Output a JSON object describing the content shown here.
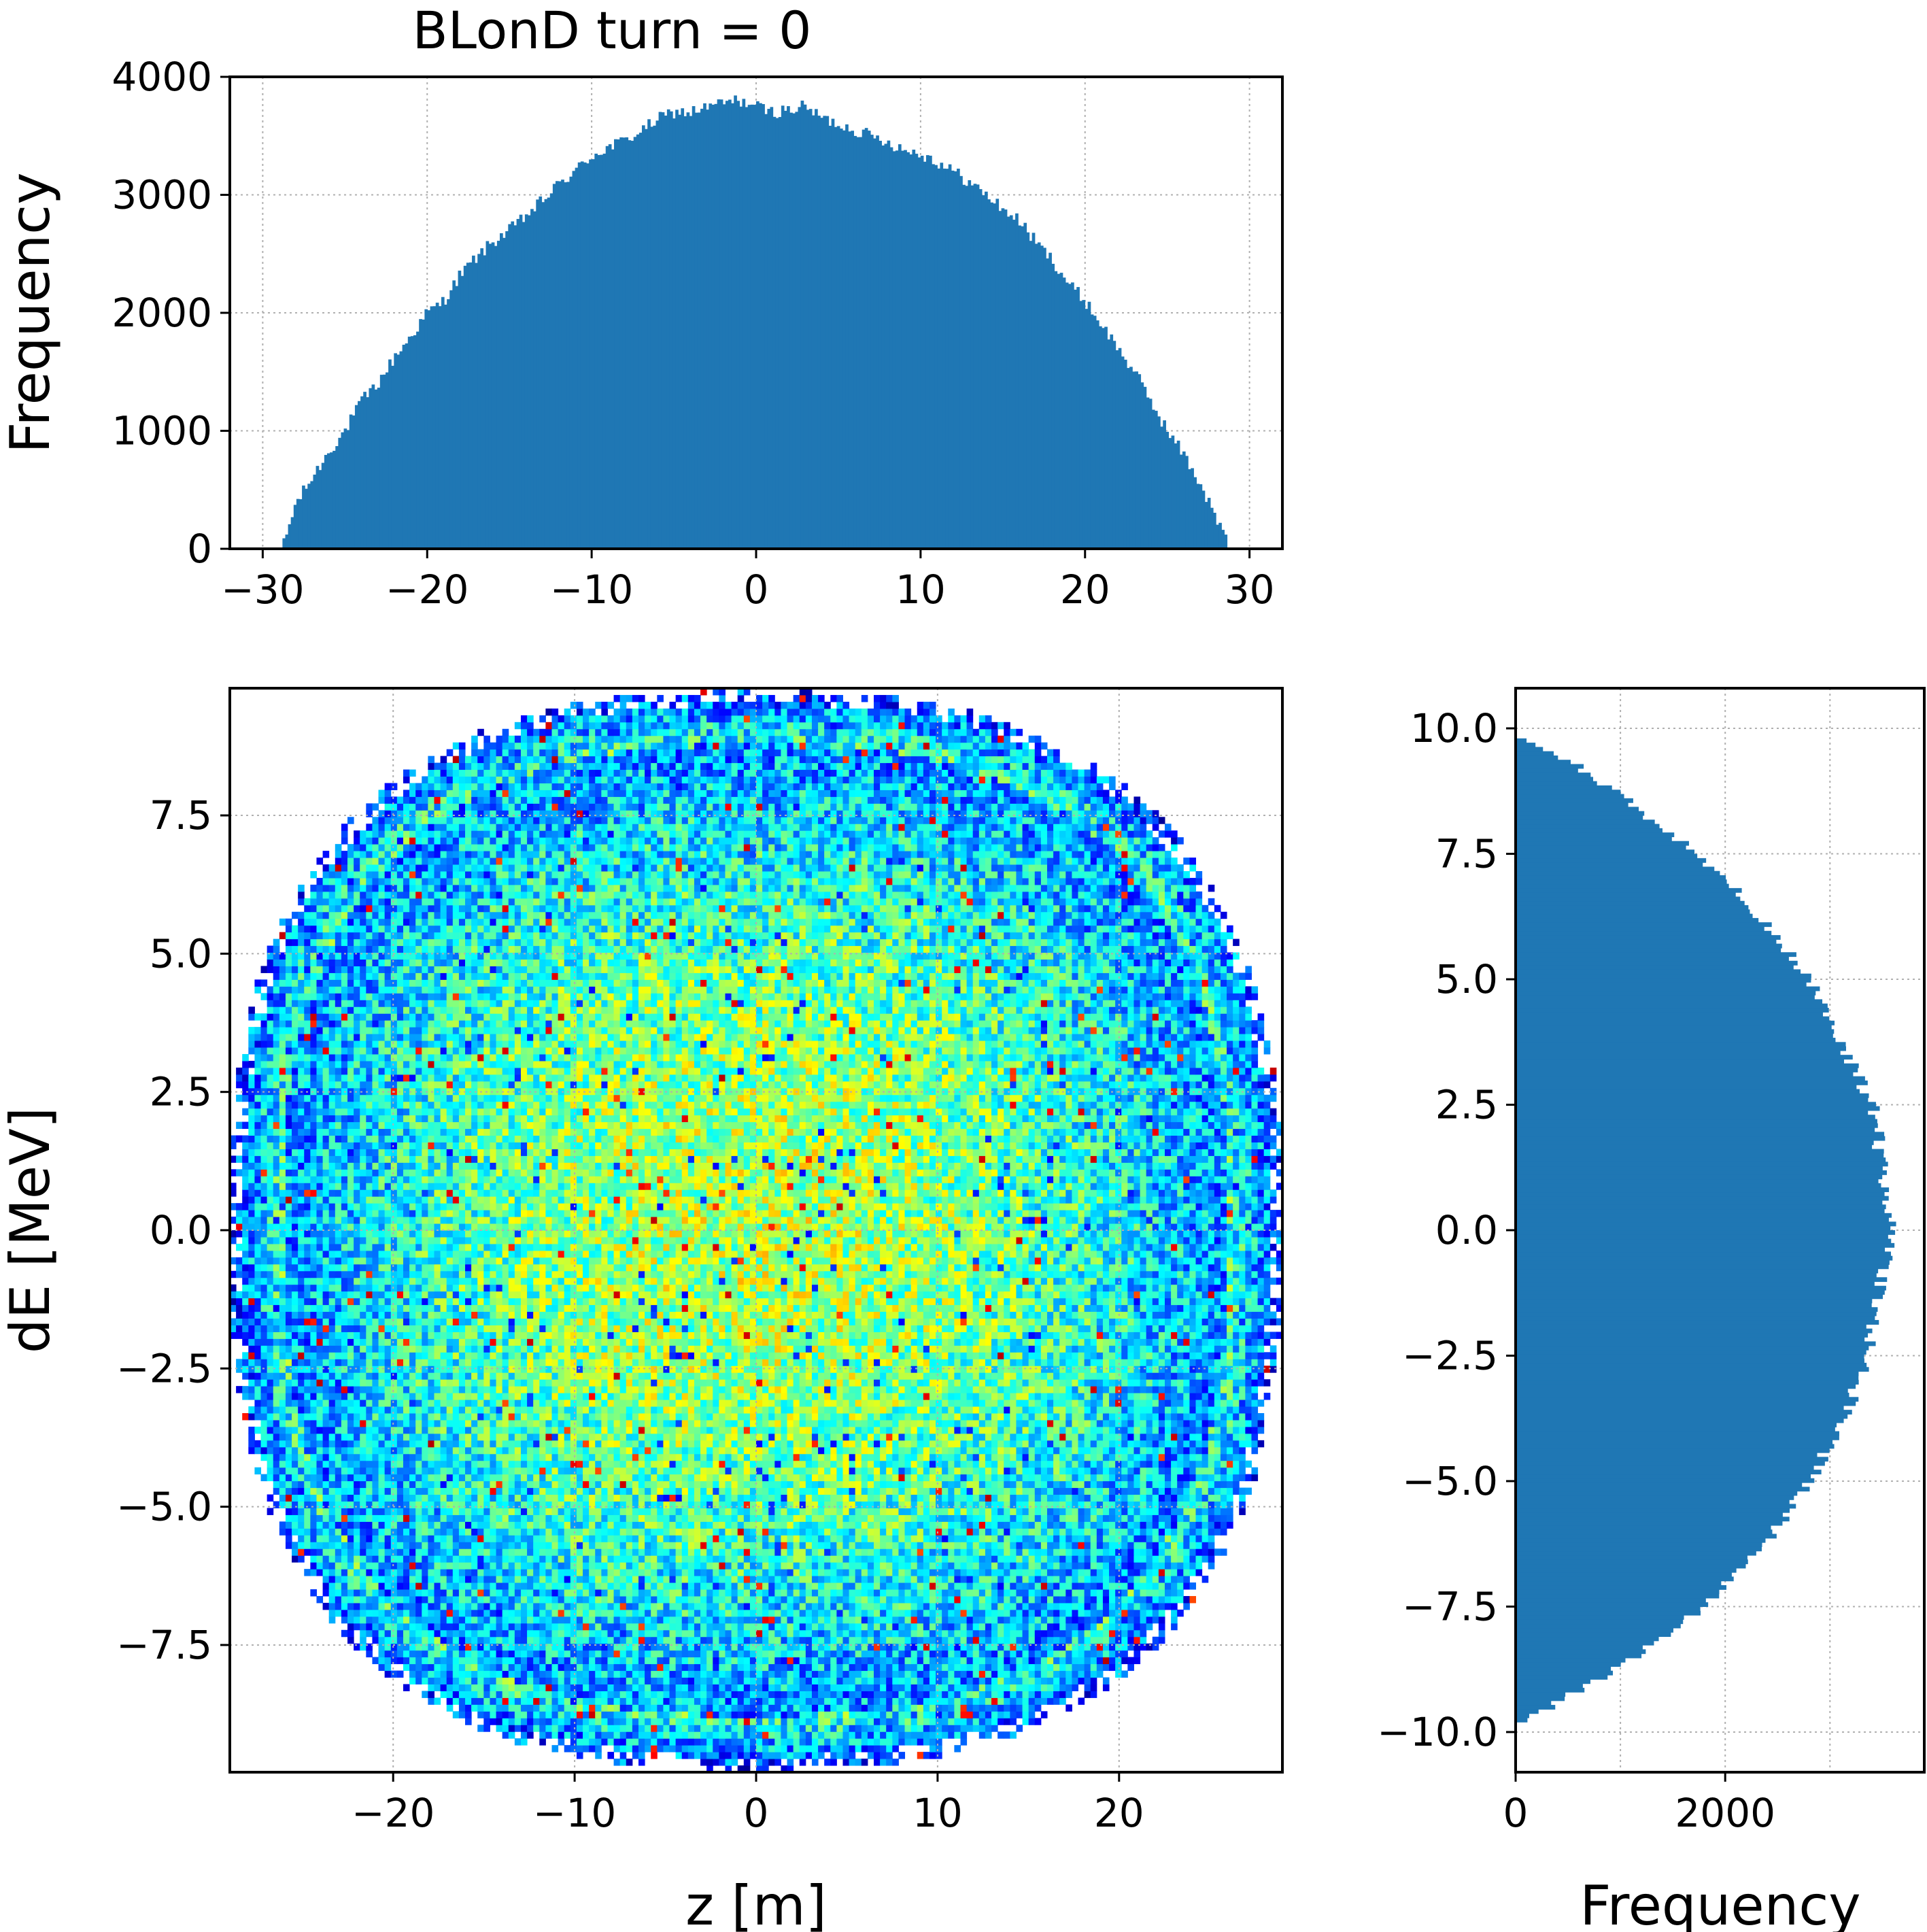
{
  "figure": {
    "title": "BLonD turn = 0"
  },
  "chart_data": [
    {
      "type": "bar",
      "panel": "top-histogram",
      "orientation": "vertical",
      "xlabel": "",
      "ylabel": "Frequency",
      "xlim": [
        -32,
        32
      ],
      "ylim": [
        0,
        4000
      ],
      "xticks": [
        -30,
        -20,
        -10,
        0,
        10,
        20,
        30
      ],
      "xtick_labels": [
        "−30",
        "−20",
        "−10",
        "0",
        "10",
        "20",
        "30"
      ],
      "yticks": [
        0,
        1000,
        2000,
        3000,
        4000
      ],
      "ytick_labels": [
        "0",
        "1000",
        "2000",
        "3000",
        "4000"
      ],
      "grid": true,
      "color": "#1f77b4",
      "profile": {
        "x": [
          -28.8,
          -28,
          -27,
          -26,
          -25,
          -24,
          -23,
          -22,
          -21,
          -20,
          -19,
          -18,
          -17,
          -16,
          -15,
          -14,
          -13,
          -12,
          -11,
          -10,
          -9,
          -8,
          -7,
          -6,
          -5,
          -4,
          -3,
          -2,
          -1,
          0,
          1,
          2,
          3,
          4,
          5,
          6,
          7,
          8,
          9,
          10,
          11,
          12,
          13,
          14,
          15,
          16,
          17,
          18,
          19,
          20,
          21,
          22,
          23,
          24,
          25,
          26,
          27,
          28,
          28.8
        ],
        "y": [
          0,
          380,
          600,
          820,
          1000,
          1250,
          1400,
          1620,
          1800,
          2000,
          2100,
          2320,
          2470,
          2600,
          2700,
          2820,
          2950,
          3090,
          3200,
          3330,
          3400,
          3460,
          3540,
          3640,
          3700,
          3700,
          3740,
          3780,
          3800,
          3750,
          3700,
          3720,
          3750,
          3650,
          3600,
          3550,
          3500,
          3450,
          3380,
          3350,
          3280,
          3200,
          3100,
          3000,
          2880,
          2780,
          2600,
          2450,
          2250,
          2100,
          1900,
          1700,
          1500,
          1250,
          1000,
          800,
          550,
          250,
          0
        ]
      },
      "bin_count": 340
    },
    {
      "type": "heatmap",
      "panel": "main-phase-space",
      "xlabel": "z [m]",
      "ylabel": "dE [MeV]",
      "xlim": [
        -29,
        29
      ],
      "ylim": [
        -9.8,
        9.8
      ],
      "xticks": [
        -20,
        -10,
        0,
        10,
        20
      ],
      "xtick_labels": [
        "−20",
        "−10",
        "0",
        "10",
        "20"
      ],
      "yticks": [
        7.5,
        5.0,
        2.5,
        0.0,
        -2.5,
        -5.0,
        -7.5
      ],
      "ytick_labels": [
        "7.5",
        "5.0",
        "2.5",
        "0.0",
        "−2.5",
        "−5.0",
        "−7.5"
      ],
      "grid": true,
      "colormap": "jet",
      "distribution": {
        "shape": "rounded-diamond",
        "z_half_width": 29,
        "dE_half_height": 9.75,
        "core_level": 0.55,
        "edge_level": 0.18
      }
    },
    {
      "type": "bar",
      "panel": "right-histogram",
      "orientation": "horizontal",
      "xlabel": "Frequency",
      "ylabel": "",
      "xlim": [
        0,
        3900
      ],
      "ylim": [
        -10.8,
        10.8
      ],
      "xticks": [
        0,
        2000
      ],
      "xtick_labels": [
        "0",
        "2000"
      ],
      "yticks": [
        10.0,
        7.5,
        5.0,
        2.5,
        0.0,
        -2.5,
        -5.0,
        -7.5,
        -10.0
      ],
      "ytick_labels": [
        "10.0",
        "7.5",
        "5.0",
        "2.5",
        "0.0",
        "−2.5",
        "−5.0",
        "−7.5",
        "−10.0"
      ],
      "grid": true,
      "color": "#1f77b4",
      "profile": {
        "y": [
          9.8,
          9.5,
          9.0,
          8.5,
          8.0,
          7.5,
          7.0,
          6.5,
          6.0,
          5.5,
          5.0,
          4.5,
          4.0,
          3.5,
          3.0,
          2.5,
          2.0,
          1.5,
          1.0,
          0.5,
          0.0,
          -0.5,
          -1.0,
          -1.5,
          -2.0,
          -2.5,
          -3.0,
          -3.5,
          -4.0,
          -4.5,
          -5.0,
          -5.5,
          -6.0,
          -6.5,
          -7.0,
          -7.5,
          -8.0,
          -8.5,
          -9.0,
          -9.5,
          -9.8
        ],
        "x": [
          0,
          380,
          780,
          1100,
          1420,
          1720,
          2000,
          2200,
          2430,
          2620,
          2800,
          2930,
          3020,
          3160,
          3280,
          3400,
          3470,
          3470,
          3520,
          3560,
          3590,
          3560,
          3500,
          3460,
          3400,
          3350,
          3280,
          3180,
          3080,
          2940,
          2800,
          2640,
          2460,
          2260,
          2040,
          1800,
          1460,
          1120,
          740,
          330,
          0
        ]
      },
      "bin_count": 230
    }
  ]
}
